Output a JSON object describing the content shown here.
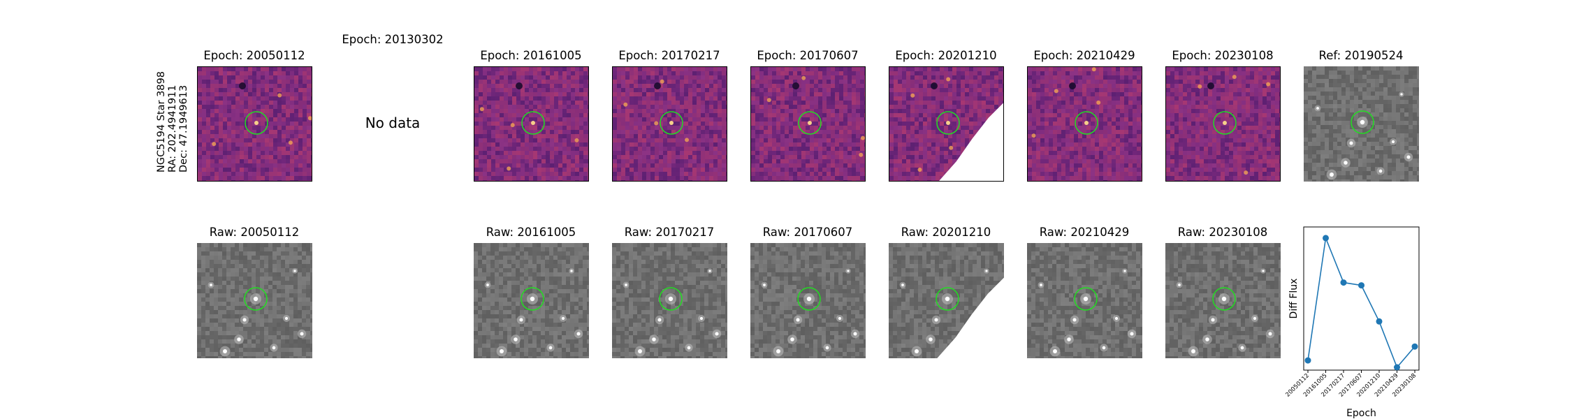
{
  "target": {
    "galaxy_star": "NGC5194 Star 3898",
    "ra": "RA: 202.4941911",
    "dec": "Dec: 47.1949613"
  },
  "top_row": [
    {
      "title": "Epoch: 20050112",
      "kind": "diff",
      "edge": false
    },
    {
      "title": "Epoch: 20130302",
      "kind": "none",
      "nodata": "No data"
    },
    {
      "title": "Epoch: 20161005",
      "kind": "diff",
      "edge": false
    },
    {
      "title": "Epoch: 20170217",
      "kind": "diff",
      "edge": false
    },
    {
      "title": "Epoch: 20170607",
      "kind": "diff",
      "edge": false
    },
    {
      "title": "Epoch: 20201210",
      "kind": "diff",
      "edge": true
    },
    {
      "title": "Epoch: 20210429",
      "kind": "diff",
      "edge": false
    },
    {
      "title": "Epoch: 20230108",
      "kind": "diff",
      "edge": false
    },
    {
      "title": "Ref: 20190524",
      "kind": "ref",
      "edge": false
    }
  ],
  "bottom_row": [
    {
      "title": "Raw: 20050112",
      "edge": false
    },
    {
      "title": "",
      "edge": false
    },
    {
      "title": "Raw: 20161005",
      "edge": false
    },
    {
      "title": "Raw: 20170217",
      "edge": false
    },
    {
      "title": "Raw: 20170607",
      "edge": false
    },
    {
      "title": "Raw: 20201210",
      "edge": true
    },
    {
      "title": "Raw: 20210429",
      "edge": false
    },
    {
      "title": "Raw: 20230108",
      "edge": false
    }
  ],
  "colors": {
    "circle": "#22dd22",
    "line": "#1f77b4",
    "diff_base": "#7a2a7e",
    "raw_base": "#6e6e6e"
  },
  "chart_data": {
    "type": "line",
    "title": "",
    "xlabel": "Epoch",
    "ylabel": "Diff Flux",
    "categories": [
      "20050112",
      "20161005",
      "20170217",
      "20170607",
      "20201210",
      "20210429",
      "20230108"
    ],
    "values": [
      0.07,
      0.95,
      0.63,
      0.61,
      0.35,
      0.02,
      0.17
    ],
    "ylim": [
      0,
      1.03
    ],
    "grid": false,
    "marker": "circle"
  }
}
